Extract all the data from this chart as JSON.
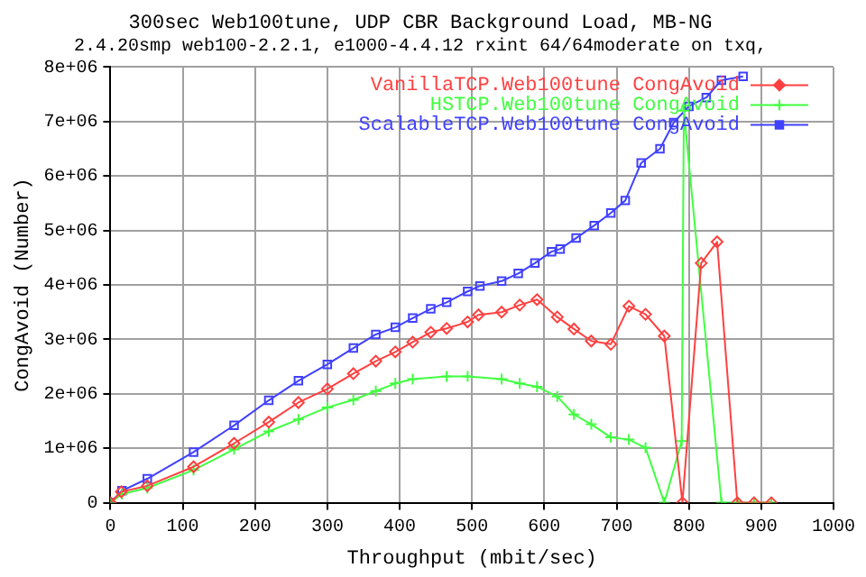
{
  "chart_data": {
    "type": "line",
    "title": "300sec Web100tune, UDP CBR Background Load, MB-NG",
    "subtitle": "2.4.20smp web100-2.2.1, e1000-4.4.12 rxint 64/64moderate on txq,",
    "xlabel": "Throughput (mbit/sec)",
    "ylabel": "CongAvoid (Number)",
    "xlim": [
      0,
      1000
    ],
    "xticks": [
      0,
      100,
      200,
      300,
      400,
      500,
      600,
      700,
      800,
      900,
      1000
    ],
    "ylim": [
      0,
      8000000
    ],
    "yticks": [
      0,
      {
        "value": 1000000,
        "label": "1e+06"
      },
      {
        "value": 2000000,
        "label": "2e+06"
      },
      {
        "value": 3000000,
        "label": "3e+06"
      },
      {
        "value": 4000000,
        "label": "4e+06"
      },
      {
        "value": 5000000,
        "label": "5e+06"
      },
      {
        "value": 6000000,
        "label": "6e+06"
      },
      {
        "value": 7000000,
        "label": "7e+06"
      },
      {
        "value": 8000000,
        "label": "8e+06"
      }
    ],
    "grid": true,
    "legend": "top right",
    "line_style": "solid",
    "series": [
      {
        "name": "VanillaTCP.Web100tune CongAvoid",
        "color": "#ff4040",
        "marker": "diamond",
        "x": [
          0,
          15,
          51,
          115,
          171,
          219,
          260,
          300,
          336,
          367,
          394,
          418,
          443,
          465,
          494,
          509,
          541,
          566,
          590,
          618,
          641,
          665,
          692,
          717,
          740,
          766,
          791,
          817,
          839,
          867,
          890,
          914
        ],
        "values": [
          0,
          200000,
          310000,
          660000,
          1090000,
          1480000,
          1840000,
          2090000,
          2370000,
          2600000,
          2770000,
          2950000,
          3130000,
          3200000,
          3320000,
          3450000,
          3500000,
          3630000,
          3730000,
          3410000,
          3190000,
          2970000,
          2910000,
          3610000,
          3460000,
          3060000,
          0,
          4400000,
          4790000,
          0,
          0,
          0
        ]
      },
      {
        "name": "HSTCP.Web100tune CongAvoid",
        "color": "#40ff40",
        "marker": "cross",
        "x": [
          0,
          16,
          51,
          115,
          171,
          219,
          260,
          300,
          336,
          367,
          394,
          418,
          465,
          494,
          541,
          566,
          590,
          618,
          641,
          665,
          692,
          717,
          740,
          766,
          790,
          793,
          845,
          868,
          890,
          914
        ],
        "values": [
          0,
          160000,
          270000,
          600000,
          980000,
          1310000,
          1530000,
          1750000,
          1890000,
          2050000,
          2190000,
          2270000,
          2320000,
          2320000,
          2270000,
          2190000,
          2130000,
          1950000,
          1620000,
          1440000,
          1200000,
          1160000,
          1010000,
          0,
          1130000,
          7200000,
          0,
          0,
          0,
          0
        ]
      },
      {
        "name": "ScalableTCP.Web100tune CongAvoid",
        "color": "#4040ff",
        "marker": "square",
        "x": [
          0,
          16,
          51,
          115,
          171,
          219,
          260,
          300,
          336,
          367,
          394,
          418,
          443,
          465,
          494,
          511,
          541,
          564,
          587,
          610,
          622,
          644,
          669,
          692,
          712,
          734,
          760,
          779,
          800,
          824,
          845,
          875
        ],
        "values": [
          0,
          220000,
          440000,
          930000,
          1420000,
          1880000,
          2240000,
          2540000,
          2840000,
          3090000,
          3220000,
          3390000,
          3560000,
          3680000,
          3880000,
          3980000,
          4070000,
          4210000,
          4400000,
          4610000,
          4660000,
          4860000,
          5090000,
          5320000,
          5550000,
          6240000,
          6500000,
          6980000,
          7280000,
          7440000,
          7760000,
          7830000
        ]
      }
    ]
  }
}
